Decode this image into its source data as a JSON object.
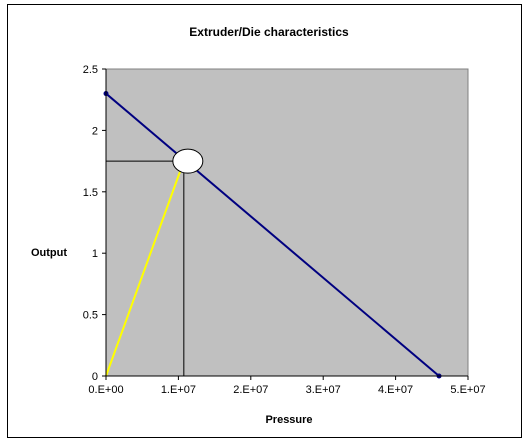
{
  "chart_data": {
    "type": "line",
    "title": "Extruder/Die characteristics",
    "xlabel": "Pressure",
    "ylabel": "Output",
    "xlim": [
      0,
      50000000
    ],
    "ylim": [
      0,
      2.5
    ],
    "x_ticks": [
      0,
      10000000,
      20000000,
      30000000,
      40000000,
      50000000
    ],
    "x_tick_labels": [
      "0.E+00",
      "1.E+07",
      "2.E+07",
      "3.E+07",
      "4.E+07",
      "5.E+07"
    ],
    "y_ticks": [
      0,
      0.5,
      1,
      1.5,
      2,
      2.5
    ],
    "y_tick_labels": [
      "0",
      "0.5",
      "1",
      "1.5",
      "2",
      "2.5"
    ],
    "grid": false,
    "legend": "none",
    "plot_background": "#c0c0c0",
    "series": [
      {
        "color": "#000080",
        "marker": "circle",
        "points": [
          [
            0,
            2.3
          ],
          [
            46000000,
            0
          ]
        ]
      },
      {
        "color": "#ffff00",
        "marker": "none",
        "points": [
          [
            0,
            0
          ],
          [
            10750000,
            1.75
          ]
        ]
      }
    ],
    "operating_point": {
      "x": 10750000,
      "y": 1.75,
      "marker_color": "#ffffff",
      "guide_color": "#000000"
    }
  }
}
